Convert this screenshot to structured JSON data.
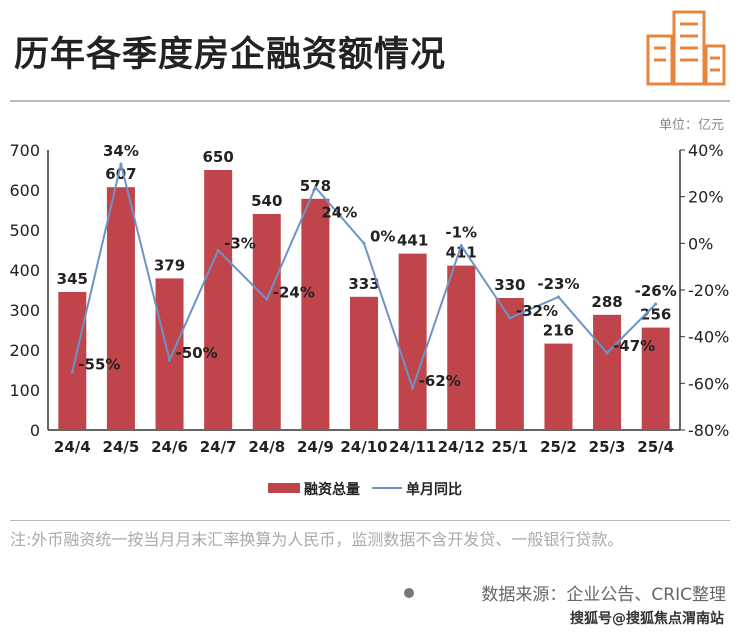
{
  "title": "历年各季度房企融资额情况",
  "unit": "单位：亿元",
  "note": "注:外币融资统一按当月月末汇率换算为人民币，监测数据不含开发贷、一般银行贷款。",
  "source": "数据来源：企业公告、CRIC整理",
  "watermark": "搜狐号@搜狐焦点渭南站",
  "colors": {
    "bar": "#c0454a",
    "line": "#6d93c7",
    "accent": "#e8843c"
  },
  "chart_data": {
    "type": "bar+line",
    "categories": [
      "24/4",
      "24/5",
      "24/6",
      "24/7",
      "24/8",
      "24/9",
      "24/10",
      "24/11",
      "24/12",
      "25/1",
      "25/2",
      "25/3",
      "25/4"
    ],
    "series": [
      {
        "name": "融资总量",
        "type": "bar",
        "axis": "left",
        "values": [
          345,
          607,
          379,
          650,
          540,
          578,
          333,
          441,
          411,
          330,
          216,
          288,
          256
        ]
      },
      {
        "name": "单月同比",
        "type": "line",
        "axis": "right",
        "values": [
          -55,
          34,
          -50,
          -3,
          -24,
          24,
          0,
          -62,
          -1,
          -32,
          -23,
          -47,
          -26
        ]
      }
    ],
    "left_axis": {
      "range": [
        0,
        700
      ],
      "ticks": [
        "0",
        "100",
        "200",
        "300",
        "400",
        "500",
        "600",
        "700"
      ]
    },
    "right_axis": {
      "range": [
        -80,
        40
      ],
      "ticks": [
        "-80%",
        "-60%",
        "-40%",
        "-20%",
        "0%",
        "20%",
        "40%"
      ]
    },
    "legend": [
      "融资总量",
      "单月同比"
    ],
    "legend_position": "bottom"
  }
}
